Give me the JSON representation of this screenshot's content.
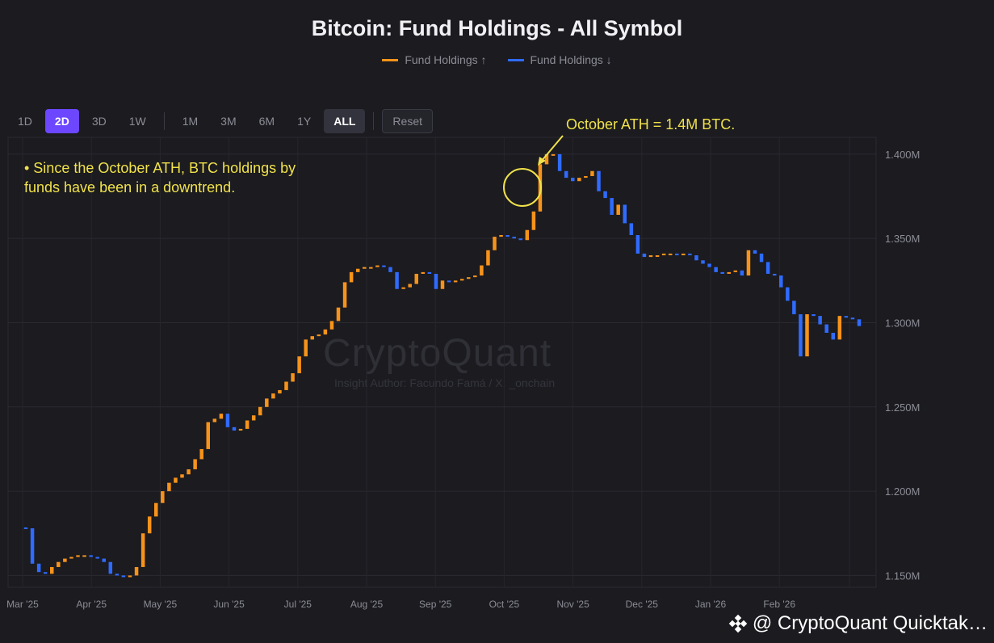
{
  "title": "Bitcoin: Fund Holdings - All Symbol",
  "legend": [
    {
      "label": "Fund Holdings ↑",
      "color": "#f7931a"
    },
    {
      "label": "Fund Holdings ↓",
      "color": "#2f6bff"
    }
  ],
  "toolbar": {
    "buttons": [
      "1D",
      "2D",
      "3D",
      "1W",
      "1M",
      "3M",
      "6M",
      "1Y",
      "ALL"
    ],
    "active": "2D",
    "reset_label": "Reset"
  },
  "note": "• Since the October ATH, BTC holdings by funds have been in a downtrend.",
  "annotation": "October ATH = 1.4M BTC.",
  "watermark": "CryptoQuant",
  "watermark_sub": "Insight Author: Facundo Famá / X: _onchain",
  "footer": "@ CryptoQuant Quicktak…",
  "chart_data": {
    "type": "candlestick",
    "title": "Bitcoin: Fund Holdings - All Symbol",
    "y_axis": {
      "ticks": [
        "1.400M",
        "1.350M",
        "1.300M",
        "1.250M",
        "1.200M",
        "1.150M"
      ],
      "range": [
        1.143,
        1.41
      ],
      "unit": "M BTC"
    },
    "x_axis": {
      "ticks": [
        "Mar '25",
        "Apr '25",
        "May '25",
        "Jun '25",
        "Jul '25",
        "Aug '25",
        "Sep '25",
        "Oct '25",
        "Nov '25",
        "Dec '25",
        "Jan '26",
        "Feb '26"
      ]
    },
    "grid": true,
    "series_up_color": "#f7931a",
    "series_down_color": "#2f6bff",
    "values": [
      1.178,
      1.157,
      1.152,
      1.151,
      1.155,
      1.158,
      1.16,
      1.161,
      1.162,
      1.162,
      1.161,
      1.16,
      1.158,
      1.151,
      1.15,
      1.149,
      1.15,
      1.155,
      1.175,
      1.185,
      1.193,
      1.2,
      1.205,
      1.208,
      1.21,
      1.213,
      1.219,
      1.225,
      1.241,
      1.243,
      1.246,
      1.238,
      1.236,
      1.237,
      1.242,
      1.245,
      1.25,
      1.255,
      1.258,
      1.26,
      1.265,
      1.27,
      1.28,
      1.29,
      1.292,
      1.293,
      1.296,
      1.301,
      1.309,
      1.324,
      1.33,
      1.332,
      1.333,
      1.333,
      1.334,
      1.333,
      1.33,
      1.32,
      1.321,
      1.323,
      1.329,
      1.33,
      1.329,
      1.32,
      1.325,
      1.324,
      1.325,
      1.326,
      1.327,
      1.328,
      1.334,
      1.343,
      1.351,
      1.352,
      1.351,
      1.35,
      1.349,
      1.355,
      1.366,
      1.394,
      1.4,
      1.4,
      1.39,
      1.386,
      1.384,
      1.386,
      1.387,
      1.39,
      1.378,
      1.374,
      1.364,
      1.37,
      1.359,
      1.352,
      1.341,
      1.339,
      1.34,
      1.34,
      1.341,
      1.341,
      1.34,
      1.341,
      1.34,
      1.337,
      1.335,
      1.333,
      1.33,
      1.329,
      1.33,
      1.331,
      1.328,
      1.343,
      1.341,
      1.336,
      1.329,
      1.328,
      1.321,
      1.313,
      1.305,
      1.28,
      1.305,
      1.304,
      1.299,
      1.294,
      1.29,
      1.304,
      1.303,
      1.302,
      1.298
    ]
  }
}
